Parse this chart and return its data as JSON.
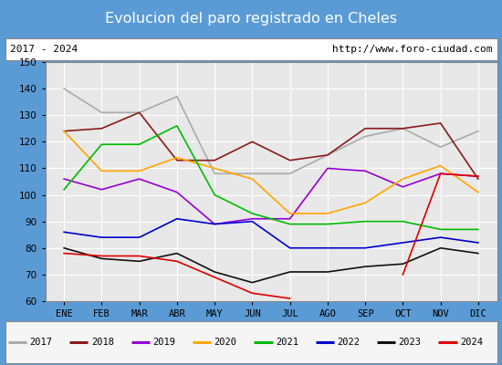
{
  "title": "Evolucion del paro registrado en Cheles",
  "subtitle_left": "2017 - 2024",
  "subtitle_right": "http://www.foro-ciudad.com",
  "months": [
    "ENE",
    "FEB",
    "MAR",
    "ABR",
    "MAY",
    "JUN",
    "JUL",
    "AGO",
    "SEP",
    "OCT",
    "NOV",
    "DIC"
  ],
  "ylim": [
    60,
    150
  ],
  "yticks": [
    60,
    70,
    80,
    90,
    100,
    110,
    120,
    130,
    140,
    150
  ],
  "series": {
    "2017": {
      "color": "#aaaaaa",
      "values": [
        140,
        131,
        131,
        137,
        108,
        108,
        108,
        115,
        122,
        125,
        118,
        124
      ]
    },
    "2018": {
      "color": "#8b1a1a",
      "values": [
        124,
        125,
        131,
        113,
        113,
        120,
        113,
        115,
        125,
        125,
        127,
        106
      ]
    },
    "2019": {
      "color": "#9400d3",
      "values": [
        106,
        102,
        106,
        101,
        89,
        91,
        91,
        110,
        109,
        103,
        108,
        107
      ]
    },
    "2020": {
      "color": "#ffa500",
      "values": [
        124,
        109,
        109,
        114,
        110,
        106,
        93,
        93,
        97,
        106,
        111,
        101
      ]
    },
    "2021": {
      "color": "#00bb00",
      "values": [
        102,
        119,
        119,
        126,
        100,
        93,
        89,
        89,
        90,
        90,
        87,
        87
      ]
    },
    "2022": {
      "color": "#0000cc",
      "values": [
        86,
        84,
        84,
        91,
        89,
        90,
        80,
        80,
        80,
        82,
        84,
        82
      ]
    },
    "2023": {
      "color": "#111111",
      "values": [
        80,
        76,
        75,
        78,
        71,
        67,
        71,
        71,
        73,
        74,
        80,
        78
      ]
    },
    "2024": {
      "color": "#dd0000",
      "values": [
        78,
        77,
        77,
        75,
        69,
        63,
        61,
        null,
        null,
        70,
        108,
        107
      ]
    }
  },
  "title_bg_color": "#5b9bd5",
  "title_text_color": "#ffffff",
  "plot_bg_color": "#e8e8e8",
  "grid_color": "#ffffff",
  "box_border_color": "#888888",
  "legend_bg": "#f5f5f5"
}
